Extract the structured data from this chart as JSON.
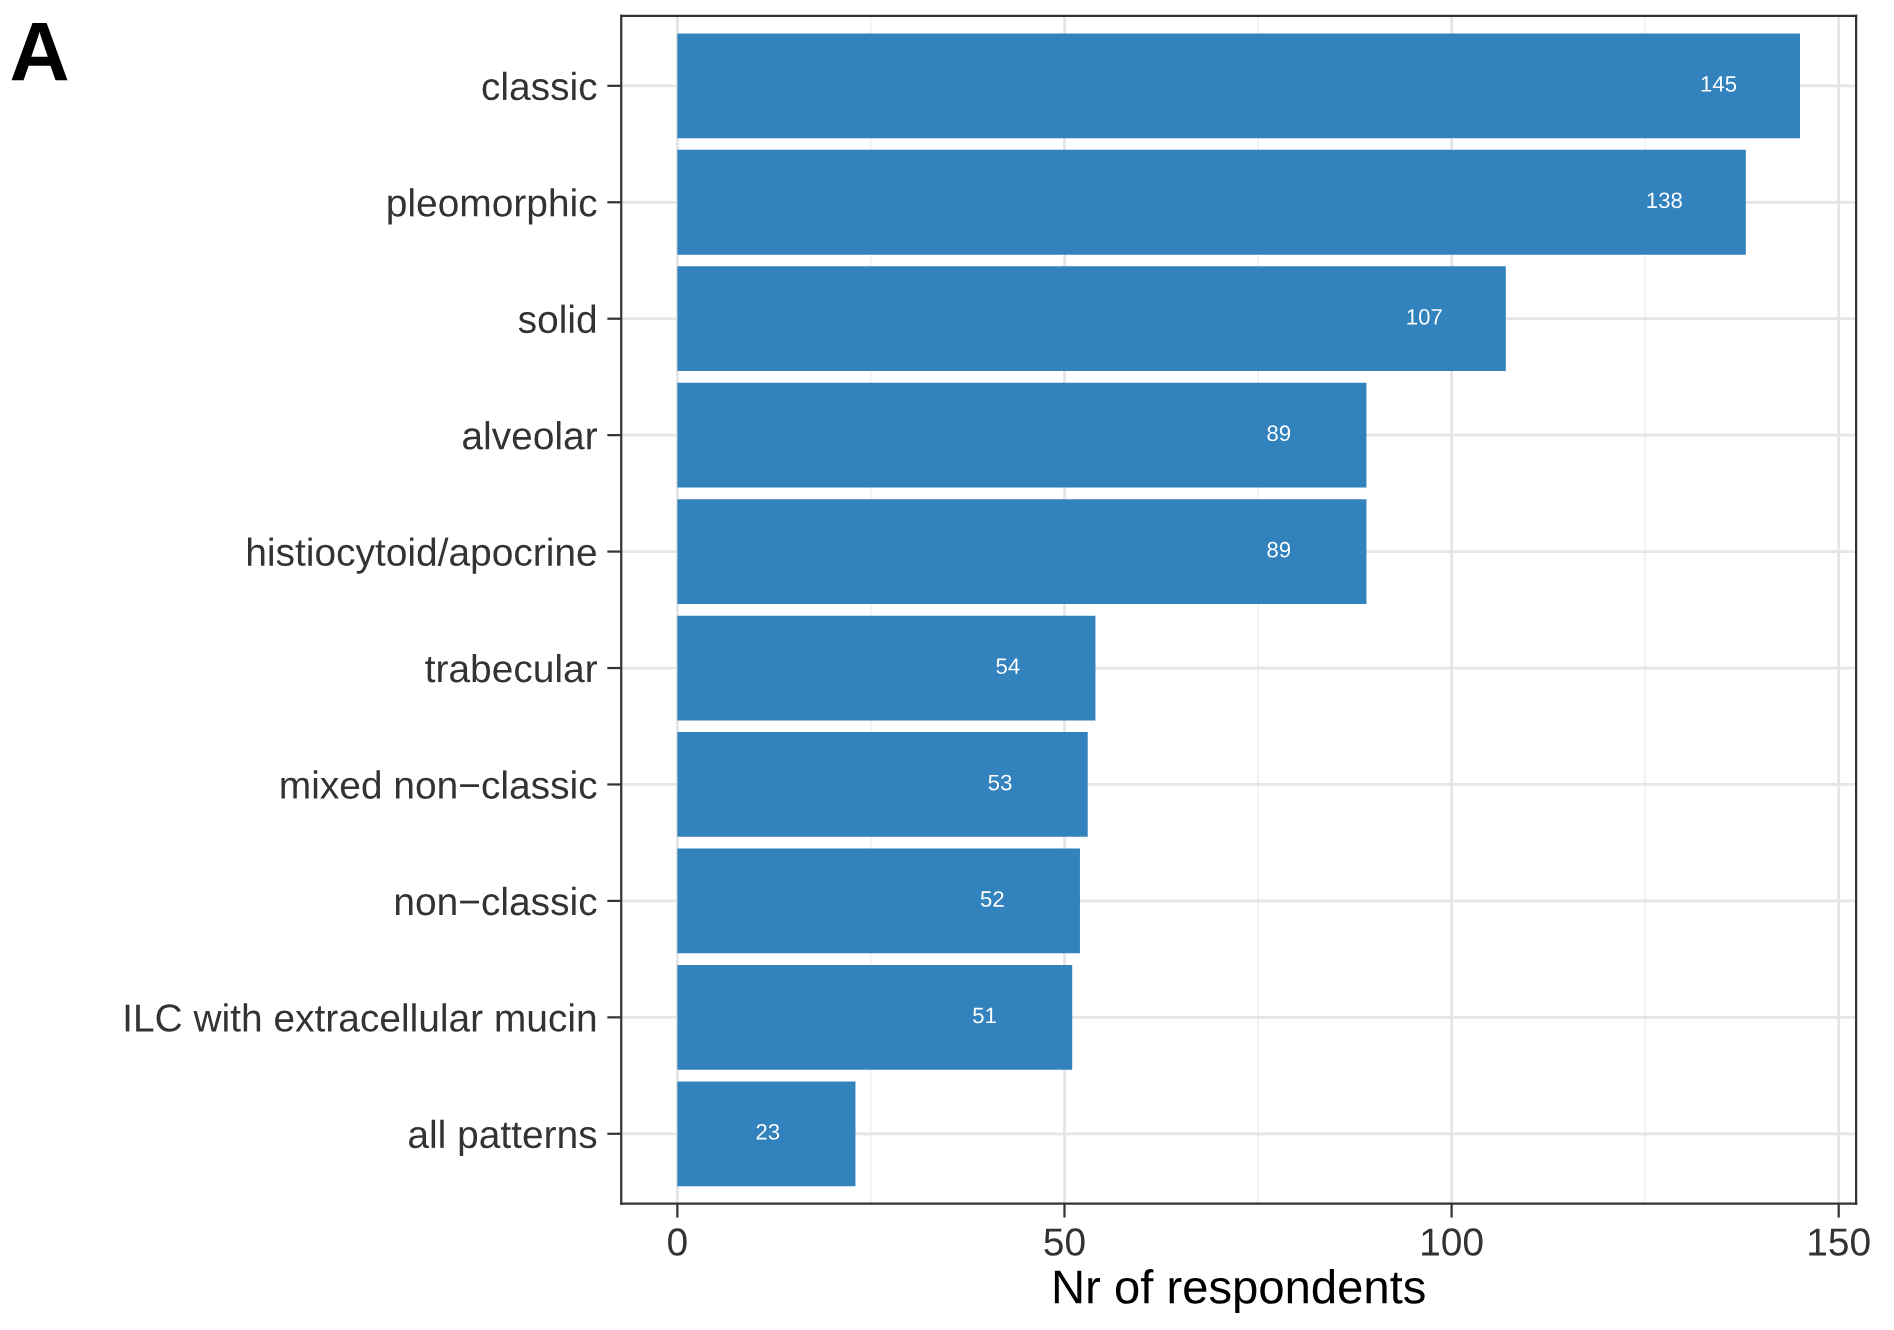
{
  "chart_data": {
    "type": "bar",
    "orientation": "horizontal",
    "xlabel": "Nr of respondents",
    "annotations": [
      "A"
    ],
    "categories": [
      "classic",
      "pleomorphic",
      "solid",
      "alveolar",
      "histiocytoid/apocrine",
      "trabecular",
      "mixed non−classic",
      "non−classic",
      "ILC with extracellular mucin",
      "all patterns"
    ],
    "values": [
      145,
      138,
      107,
      89,
      89,
      54,
      53,
      52,
      51,
      23
    ],
    "color": "#3182bd",
    "data_labels": true,
    "xlim": [
      -7.25,
      152.25
    ],
    "xticks": [
      0,
      50,
      100,
      150
    ],
    "grid": true
  }
}
